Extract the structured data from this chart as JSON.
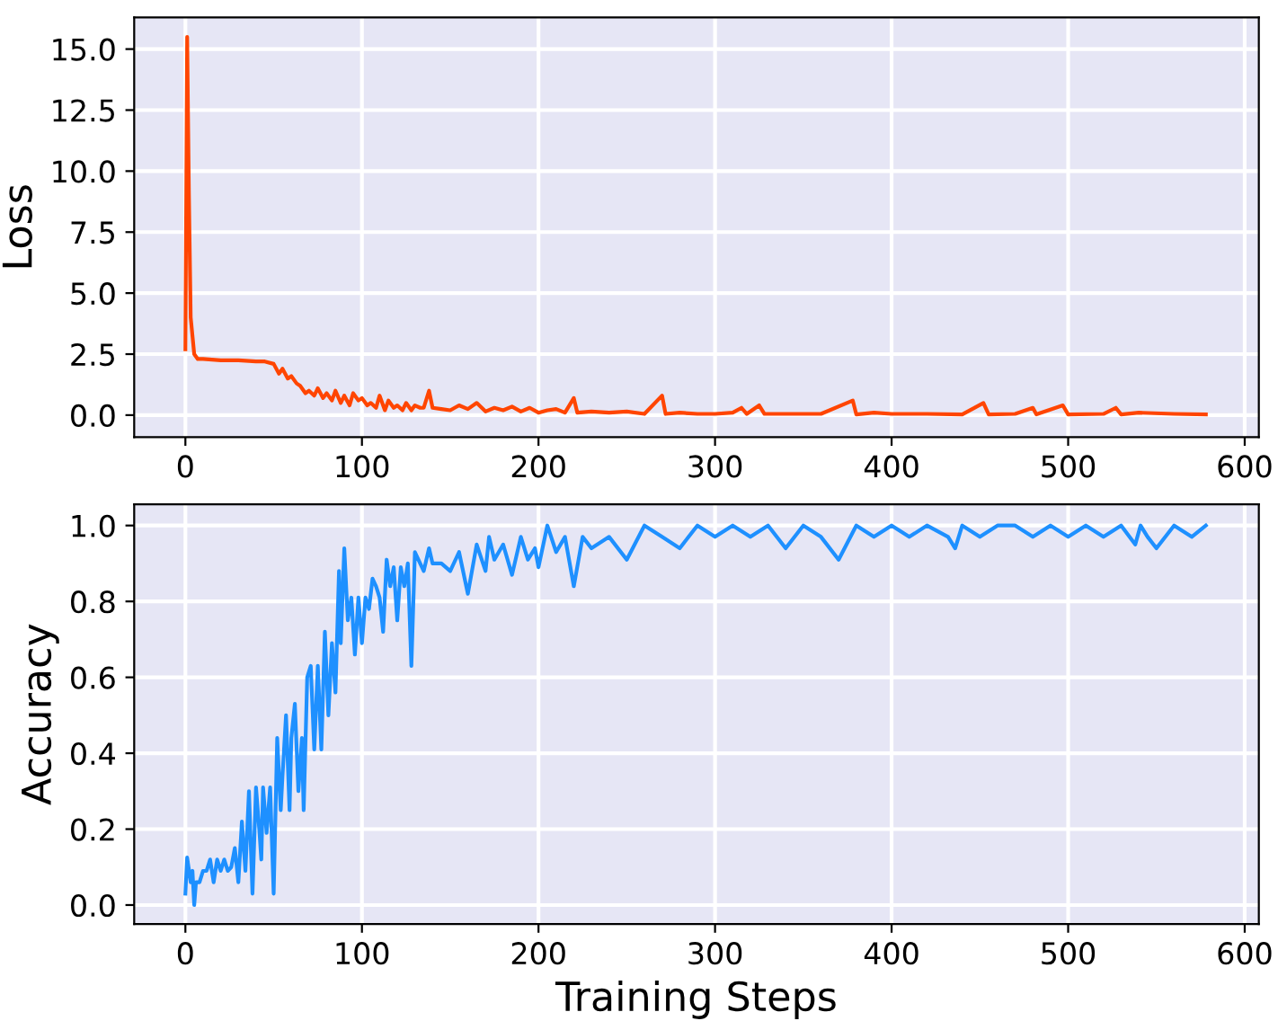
{
  "chart_data": [
    {
      "type": "line",
      "ylabel": "Loss",
      "xlim": [
        -29,
        608
      ],
      "ylim": [
        -0.9,
        16.3
      ],
      "xticks": [
        0,
        100,
        200,
        300,
        400,
        500,
        600
      ],
      "yticks": [
        {
          "value": 0,
          "label": "0.0"
        },
        {
          "value": 2.5,
          "label": "2.5"
        },
        {
          "value": 5,
          "label": "5.0"
        },
        {
          "value": 7.5,
          "label": "7.5"
        },
        {
          "value": 10,
          "label": "10.0"
        },
        {
          "value": 12.5,
          "label": "12.5"
        },
        {
          "value": 15,
          "label": "15.0"
        }
      ],
      "grid": true,
      "series": [
        {
          "color": "#ff4500",
          "x": [
            0,
            1,
            2,
            3,
            5,
            7,
            10,
            20,
            30,
            40,
            45,
            50,
            53,
            55,
            58,
            60,
            63,
            65,
            68,
            70,
            73,
            75,
            78,
            80,
            83,
            85,
            88,
            90,
            93,
            95,
            98,
            100,
            103,
            105,
            108,
            110,
            113,
            115,
            118,
            120,
            123,
            125,
            128,
            130,
            133,
            135,
            138,
            140,
            145,
            150,
            155,
            160,
            165,
            170,
            175,
            180,
            185,
            190,
            195,
            200,
            205,
            210,
            215,
            220,
            222,
            230,
            240,
            250,
            260,
            270,
            272,
            280,
            290,
            300,
            310,
            315,
            318,
            325,
            328,
            340,
            360,
            378,
            380,
            390,
            400,
            420,
            440,
            452,
            455,
            470,
            480,
            482,
            497,
            500,
            520,
            527,
            530,
            540,
            560,
            578
          ],
          "values": [
            2.7,
            15.5,
            9.0,
            4.0,
            2.5,
            2.3,
            2.3,
            2.25,
            2.25,
            2.2,
            2.2,
            2.1,
            1.7,
            1.9,
            1.5,
            1.6,
            1.3,
            1.2,
            0.9,
            1.0,
            0.8,
            1.1,
            0.7,
            0.9,
            0.6,
            1.0,
            0.5,
            0.8,
            0.4,
            0.9,
            0.6,
            0.7,
            0.4,
            0.5,
            0.3,
            0.8,
            0.2,
            0.6,
            0.3,
            0.4,
            0.2,
            0.5,
            0.2,
            0.4,
            0.3,
            0.3,
            1.0,
            0.3,
            0.25,
            0.2,
            0.4,
            0.25,
            0.5,
            0.15,
            0.3,
            0.2,
            0.35,
            0.15,
            0.3,
            0.1,
            0.2,
            0.25,
            0.1,
            0.7,
            0.1,
            0.15,
            0.1,
            0.15,
            0.05,
            0.8,
            0.05,
            0.1,
            0.05,
            0.05,
            0.1,
            0.3,
            0.05,
            0.4,
            0.05,
            0.05,
            0.05,
            0.6,
            0.03,
            0.1,
            0.05,
            0.05,
            0.03,
            0.5,
            0.03,
            0.05,
            0.3,
            0.03,
            0.4,
            0.03,
            0.05,
            0.3,
            0.03,
            0.1,
            0.05,
            0.03
          ]
        }
      ]
    },
    {
      "type": "line",
      "xlabel": "Training Steps",
      "ylabel": "Accuracy",
      "xlim": [
        -29,
        608
      ],
      "ylim": [
        -0.05,
        1.056
      ],
      "xticks": [
        0,
        100,
        200,
        300,
        400,
        500,
        600
      ],
      "yticks": [
        {
          "value": 0,
          "label": "0.0"
        },
        {
          "value": 0.2,
          "label": "0.2"
        },
        {
          "value": 0.4,
          "label": "0.4"
        },
        {
          "value": 0.6,
          "label": "0.6"
        },
        {
          "value": 0.8,
          "label": "0.8"
        },
        {
          "value": 1,
          "label": "1.0"
        }
      ],
      "grid": true,
      "series": [
        {
          "color": "#1e90ff",
          "x": [
            0,
            1,
            3,
            4,
            5,
            6,
            8,
            10,
            12,
            14,
            16,
            18,
            20,
            22,
            24,
            26,
            28,
            30,
            32,
            34,
            36,
            38,
            40,
            42,
            43,
            44,
            46,
            48,
            50,
            52,
            54,
            55,
            57,
            59,
            60,
            62,
            64,
            66,
            67,
            69,
            71,
            73,
            75,
            77,
            79,
            81,
            83,
            85,
            87,
            88,
            90,
            92,
            94,
            96,
            98,
            100,
            102,
            104,
            106,
            108,
            110,
            112,
            114,
            116,
            118,
            120,
            122,
            124,
            126,
            128,
            130,
            135,
            138,
            140,
            145,
            150,
            155,
            160,
            165,
            170,
            172,
            175,
            180,
            185,
            190,
            194,
            198,
            200,
            205,
            210,
            215,
            220,
            225,
            230,
            240,
            250,
            260,
            270,
            280,
            290,
            300,
            310,
            320,
            330,
            340,
            350,
            360,
            370,
            380,
            390,
            400,
            410,
            420,
            432,
            436,
            440,
            450,
            460,
            470,
            480,
            490,
            500,
            510,
            520,
            530,
            538,
            541,
            545,
            550,
            560,
            570,
            578
          ],
          "values": [
            0.03,
            0.125,
            0.06,
            0.09,
            0.0,
            0.06,
            0.06,
            0.09,
            0.09,
            0.12,
            0.06,
            0.12,
            0.09,
            0.12,
            0.09,
            0.1,
            0.15,
            0.06,
            0.22,
            0.09,
            0.3,
            0.03,
            0.31,
            0.19,
            0.12,
            0.31,
            0.19,
            0.31,
            0.03,
            0.44,
            0.25,
            0.34,
            0.5,
            0.25,
            0.44,
            0.53,
            0.3,
            0.44,
            0.25,
            0.6,
            0.63,
            0.41,
            0.63,
            0.41,
            0.72,
            0.5,
            0.69,
            0.56,
            0.88,
            0.69,
            0.94,
            0.75,
            0.81,
            0.66,
            0.81,
            0.69,
            0.81,
            0.78,
            0.86,
            0.84,
            0.81,
            0.72,
            0.91,
            0.84,
            0.89,
            0.75,
            0.89,
            0.84,
            0.9,
            0.63,
            0.93,
            0.88,
            0.94,
            0.9,
            0.9,
            0.88,
            0.93,
            0.82,
            0.95,
            0.88,
            0.97,
            0.91,
            0.95,
            0.87,
            0.97,
            0.91,
            0.94,
            0.89,
            1.0,
            0.93,
            0.97,
            0.84,
            0.97,
            0.94,
            0.97,
            0.91,
            1.0,
            0.97,
            0.94,
            1.0,
            0.97,
            1.0,
            0.97,
            1.0,
            0.94,
            1.0,
            0.97,
            0.91,
            1.0,
            0.97,
            1.0,
            0.97,
            1.0,
            0.97,
            0.94,
            1.0,
            0.97,
            1.0,
            1.0,
            0.97,
            1.0,
            0.97,
            1.0,
            0.97,
            1.0,
            0.95,
            1.0,
            0.97,
            0.94,
            1.0,
            0.97,
            1.0
          ]
        }
      ]
    }
  ]
}
